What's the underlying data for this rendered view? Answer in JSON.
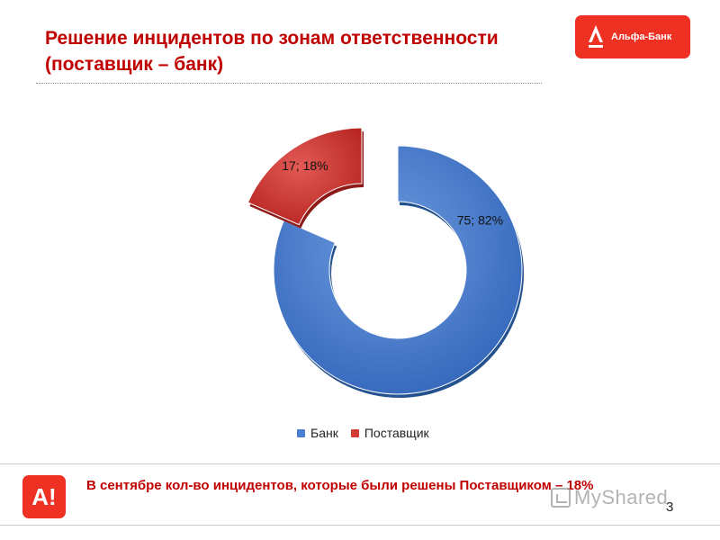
{
  "header": {
    "title_line1": "Решение инцидентов по зонам ответственности",
    "title_line2": "(поставщик – банк)",
    "title_color": "#c00000"
  },
  "logo": {
    "text": "Альфа-Банк",
    "background": "#ef3124",
    "icon": "alfa-a-logo-icon"
  },
  "chart_data": {
    "type": "pie",
    "variant": "exploded-doughnut-3d",
    "categories": [
      "Банк",
      "Поставщик"
    ],
    "values": [
      75,
      17
    ],
    "percents": [
      82,
      18
    ],
    "data_labels": [
      "75; 82%",
      "17; 18%"
    ],
    "colors": [
      "#4a7fd0",
      "#d23a35"
    ],
    "legend_position": "bottom",
    "title": ""
  },
  "legend": {
    "items": [
      {
        "label": "Банк",
        "color": "#4a7fd0"
      },
      {
        "label": "Поставщик",
        "color": "#d23a35"
      }
    ]
  },
  "footer": {
    "badge_text": "A!",
    "badge_color": "#ef3124",
    "note": "В сентябре кол-во инцидентов, которые были решены Поставщиком – 18%",
    "note_color": "#c00000",
    "watermark": "MyShared",
    "watermark_icon": "presentation-board-icon",
    "slide_number": "3"
  }
}
